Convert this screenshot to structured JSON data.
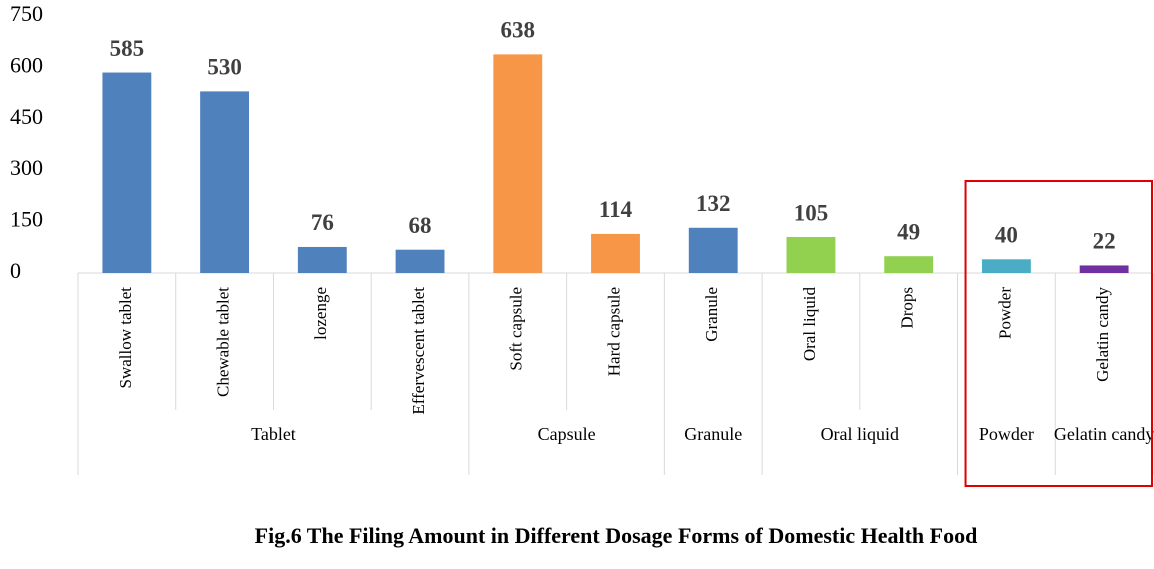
{
  "chart_data": {
    "type": "grouped-bar",
    "title": "Fig.6 The  Filing Amount in Different Dosage Forms of Domestic Health Food",
    "ylim": [
      0,
      750
    ],
    "yticks": [
      0,
      150,
      300,
      450,
      600,
      750
    ],
    "groups": [
      {
        "name": "Tablet",
        "color": "#4f81bd",
        "categories": [
          "Swallow tablet",
          "Chewable tablet",
          "lozenge",
          "Effervescent tablet"
        ],
        "values": [
          585,
          530,
          76,
          68
        ]
      },
      {
        "name": "Capsule",
        "color": "#f79646",
        "categories": [
          "Soft capsule",
          "Hard capsule"
        ],
        "values": [
          638,
          114
        ]
      },
      {
        "name": "Granule",
        "color": "#4f81bd",
        "categories": [
          "Granule"
        ],
        "values": [
          132
        ]
      },
      {
        "name": "Oral liquid",
        "color": "#92d050",
        "categories": [
          "Oral liquid",
          "Drops"
        ],
        "values": [
          105,
          49
        ]
      },
      {
        "name": "Powder",
        "color": "#4bacc6",
        "categories": [
          "Powder"
        ],
        "values": [
          40
        ]
      },
      {
        "name": "Gelatin candy",
        "color": "#7030a0",
        "categories": [
          "Gelatin candy"
        ],
        "values": [
          22
        ]
      }
    ],
    "highlight_groups": [
      "Powder",
      "Gelatin candy"
    ],
    "highlight_color": "#e00000"
  }
}
